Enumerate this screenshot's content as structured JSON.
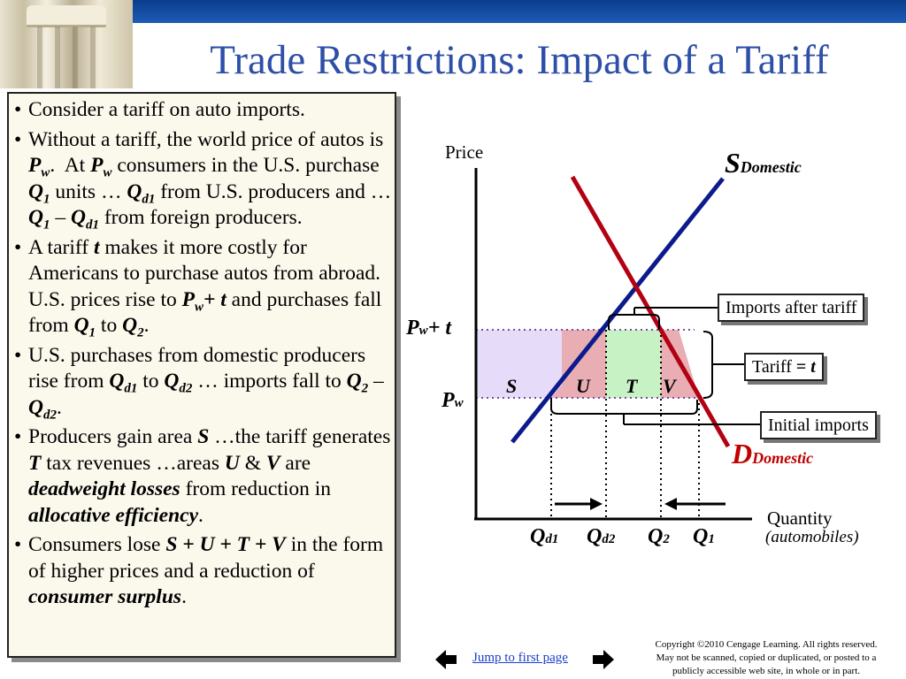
{
  "slide": {
    "title": "Trade Restrictions: Impact of a Tariff"
  },
  "textbox": {
    "bullets": [
      "Consider a tariff on auto imports.",
      "Without a tariff, the world price of autos is P_w. At P_w consumers in the U.S. purchase Q_1 units … Q_d1 from U.S. producers and … Q_1 – Q_d1 from foreign producers.",
      "A tariff t makes it more costly for Americans to purchase autos from abroad. U.S. prices rise to P_w + t and purchases fall from Q_1 to Q_2.",
      "U.S. purchases from domestic producers rise from Q_d1 to Q_d2 … imports fall to Q_2 – Q_d2.",
      "Producers gain area S …the tariff generates T tax revenues …areas U & V are deadweight losses from reduction in allocative efficiency.",
      "Consumers lose S + U + T + V in the form of higher prices and a reduction of consumer surplus."
    ]
  },
  "diagram": {
    "y_axis_label": "Price",
    "x_axis_label": "Quantity",
    "x_axis_sublabel": "(automobiles)",
    "supply_label": "S",
    "supply_sub": "Domestic",
    "demand_label": "D",
    "demand_sub": "Domestic",
    "price_high_label": "P",
    "price_high_sub": "w",
    "price_high_suffix": "+ t",
    "price_low_label": "P",
    "price_low_sub": "w",
    "area_labels": {
      "s": "S",
      "u": "U",
      "t": "T",
      "v": "V"
    },
    "quantity_labels": [
      {
        "main": "Q",
        "sub": "d1"
      },
      {
        "main": "Q",
        "sub": "d2"
      },
      {
        "main": "Q",
        "sub": "2"
      },
      {
        "main": "Q",
        "sub": "1"
      }
    ],
    "callouts": {
      "imports_after": "Imports after tariff",
      "tariff_prefix": "Tariff ",
      "tariff_eq": "= ",
      "tariff_t": "t",
      "initial_imports": "Initial imports"
    },
    "colors": {
      "supply": "#0c1a8c",
      "demand": "#b30012",
      "area_s": "#e6dcfa",
      "area_u_v": "#e8aeb4",
      "area_t": "#c6f2c4",
      "demand_label": "#c00000"
    }
  },
  "footer": {
    "nav_link": "Jump to first page",
    "copyright_lines": [
      "Copyright ©2010 Cengage Learning. All rights reserved.",
      "May not be scanned, copied or duplicated, or posted to a",
      "publicly accessible web site, in whole or in part."
    ]
  }
}
